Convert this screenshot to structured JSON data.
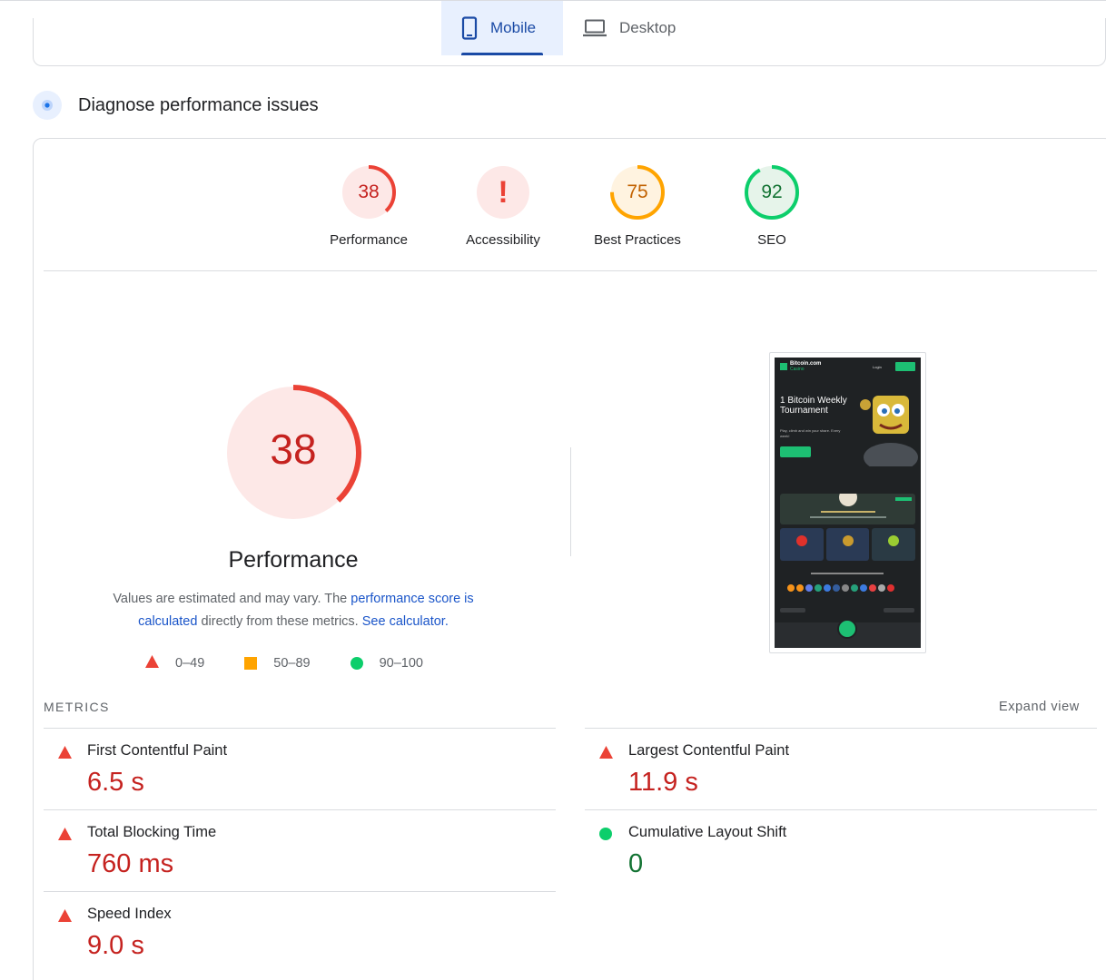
{
  "tabs": [
    {
      "label": "Mobile",
      "icon": "phone-icon",
      "active": true
    },
    {
      "label": "Desktop",
      "icon": "laptop-icon",
      "active": false
    }
  ],
  "diagnose": {
    "title": "Diagnose performance issues",
    "icon": "lighthouse-icon"
  },
  "scores": [
    {
      "label": "Performance",
      "value": "38",
      "score": 0.38,
      "color": "#c5221f",
      "bg": "#fde8e7"
    },
    {
      "label": "Accessibility",
      "value": "!",
      "score": 0,
      "color": "#eb4236",
      "bg": "#fde8e7"
    },
    {
      "label": "Best Practices",
      "value": "75",
      "score": 0.75,
      "color": "#c26100",
      "bg": "#fff3e0"
    },
    {
      "label": "SEO",
      "value": "92",
      "score": 0.92,
      "color": "#137333",
      "bg": "#e6f4ea"
    }
  ],
  "performance": {
    "value": "38",
    "score": 0.38,
    "label": "Performance",
    "note_pre": "Values are estimated and may vary. The ",
    "note_link1": "performance score is calculated",
    "note_mid": " directly from these metrics. ",
    "note_link2": "See calculator."
  },
  "legend": [
    {
      "range": "0–49",
      "shape": "triangle",
      "color": "#eb4236"
    },
    {
      "range": "50–89",
      "shape": "square",
      "color": "#ffa400"
    },
    {
      "range": "90–100",
      "shape": "circle",
      "color": "#0cce6b"
    }
  ],
  "screenshot": {
    "brand": "Bitcoin.com",
    "brand_sub": "Casino",
    "login": "Login",
    "hero_title": "1 Bitcoin Weekly Tournament",
    "hero_sub": "Play, climb and win your share. Every week!"
  },
  "metrics_header": "METRICS",
  "expand_label": "Expand view",
  "metrics": [
    {
      "name": "First Contentful Paint",
      "value": "6.5 s",
      "status": "poor"
    },
    {
      "name": "Largest Contentful Paint",
      "value": "11.9 s",
      "status": "poor"
    },
    {
      "name": "Total Blocking Time",
      "value": "760 ms",
      "status": "poor"
    },
    {
      "name": "Cumulative Layout Shift",
      "value": "0",
      "status": "good"
    },
    {
      "name": "Speed Index",
      "value": "9.0 s",
      "status": "poor"
    }
  ]
}
